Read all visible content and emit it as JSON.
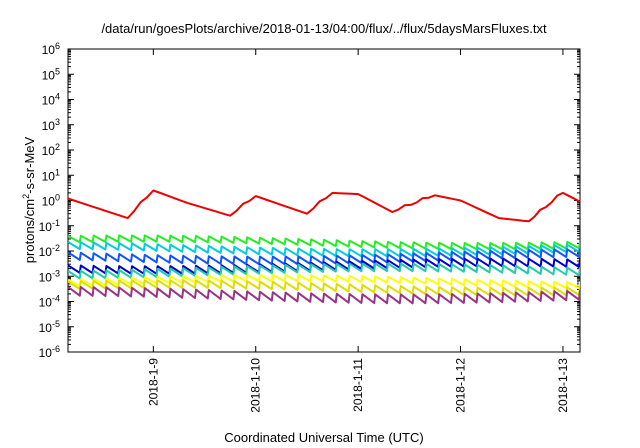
{
  "chart_data": {
    "type": "line",
    "title": "/data/run/goesPlots/archive/2018-01-13/04:00/flux/../flux/5daysMarsFluxes.txt",
    "xlabel": "Coordinated Universal Time (UTC)",
    "ylabel_parts": [
      "protons/cm",
      "2",
      "-s-sr-MeV"
    ],
    "yscale": "log",
    "ylim": [
      1e-06,
      1000000.0
    ],
    "y_ticks": [
      {
        "base": "10",
        "exp": "-6",
        "value": 1e-06
      },
      {
        "base": "10",
        "exp": "-5",
        "value": 1e-05
      },
      {
        "base": "10",
        "exp": "-4",
        "value": 0.0001
      },
      {
        "base": "10",
        "exp": "-3",
        "value": 0.001
      },
      {
        "base": "10",
        "exp": "-2",
        "value": 0.01
      },
      {
        "base": "10",
        "exp": "-1",
        "value": 0.1
      },
      {
        "base": "10",
        "exp": "0",
        "value": 1
      },
      {
        "base": "10",
        "exp": "1",
        "value": 10
      },
      {
        "base": "10",
        "exp": "2",
        "value": 100
      },
      {
        "base": "10",
        "exp": "3",
        "value": 1000
      },
      {
        "base": "10",
        "exp": "4",
        "value": 10000
      },
      {
        "base": "10",
        "exp": "5",
        "value": 100000
      },
      {
        "base": "10",
        "exp": "6",
        "value": 1000000
      }
    ],
    "xlim": [
      "2018-01-08T04:00",
      "2018-01-13T04:00"
    ],
    "x_ticks": [
      {
        "label": "2018-1-9",
        "date": "2018-01-09T00:00"
      },
      {
        "label": "2018-1-10",
        "date": "2018-01-10T00:00"
      },
      {
        "label": "2018-1-11",
        "date": "2018-01-11T00:00"
      },
      {
        "label": "2018-1-12",
        "date": "2018-01-12T00:00"
      },
      {
        "label": "2018-1-13",
        "date": "2018-01-13T00:00"
      }
    ],
    "grid": false,
    "legend": "none",
    "series": [
      {
        "color": "#ee0000",
        "style": "wander",
        "level": 0.55,
        "amp": 0.75,
        "x": [
          "2018-01-08T04:00",
          "2018-01-08T18:00",
          "2018-01-09T00:00",
          "2018-01-09T08:00",
          "2018-01-09T18:00",
          "2018-01-10T00:00",
          "2018-01-10T12:00",
          "2018-01-10T18:00",
          "2018-01-11T00:00",
          "2018-01-11T08:00",
          "2018-01-11T18:00",
          "2018-01-12T00:00",
          "2018-01-12T09:00",
          "2018-01-12T16:00",
          "2018-01-13T00:00",
          "2018-01-13T04:00"
        ],
        "y": [
          1.2,
          0.2,
          2.5,
          0.8,
          0.25,
          1.5,
          0.3,
          2.0,
          1.8,
          0.35,
          1.6,
          1.0,
          0.2,
          0.15,
          2.0,
          0.9
        ]
      },
      {
        "color": "#22ee22",
        "style": "sawtooth",
        "level": 0.022,
        "amp": 0.25
      },
      {
        "color": "#00ccdd",
        "style": "sawtooth",
        "level": 0.012,
        "amp": 0.28
      },
      {
        "color": "#1155ff",
        "style": "sawtooth",
        "level": 0.006,
        "amp": 0.3
      },
      {
        "color": "#0000cc",
        "style": "sawtooth",
        "level": 0.0025,
        "amp": 0.3
      },
      {
        "color": "#22ccaa",
        "style": "sawtooth",
        "level": 0.0016,
        "amp": 0.3
      },
      {
        "color": "#ffff00",
        "style": "sawtooth",
        "level": 0.0006,
        "amp": 0.25
      },
      {
        "color": "#dddd00",
        "style": "sawtooth",
        "level": 0.00035,
        "amp": 0.3
      },
      {
        "color": "#993388",
        "style": "sawtooth",
        "level": 0.00018,
        "amp": 0.35
      }
    ]
  }
}
